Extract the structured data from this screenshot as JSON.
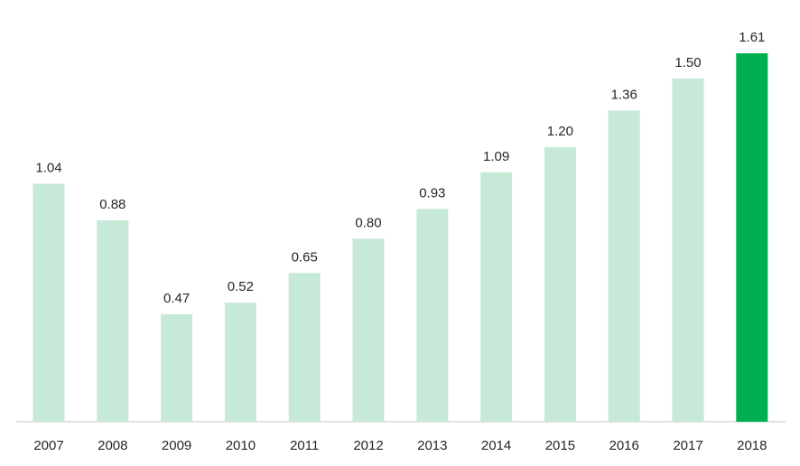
{
  "chart_data": {
    "type": "bar",
    "categories": [
      "2007",
      "2008",
      "2009",
      "2010",
      "2011",
      "2012",
      "2013",
      "2014",
      "2015",
      "2016",
      "2017",
      "2018"
    ],
    "values": [
      1.04,
      0.88,
      0.47,
      0.52,
      0.65,
      0.8,
      0.93,
      1.09,
      1.2,
      1.36,
      1.5,
      1.61
    ],
    "value_labels": [
      "1.04",
      "0.88",
      "0.47",
      "0.52",
      "0.65",
      "0.80",
      "0.93",
      "1.09",
      "1.20",
      "1.36",
      "1.50",
      "1.61"
    ],
    "ylim": [
      0,
      1.61
    ],
    "highlight_index": 11,
    "colors": {
      "bar": "#c6ead7",
      "highlight": "#00b050",
      "axis": "#c8c8c8",
      "text": "#262626"
    },
    "grid": false,
    "legend": false
  }
}
